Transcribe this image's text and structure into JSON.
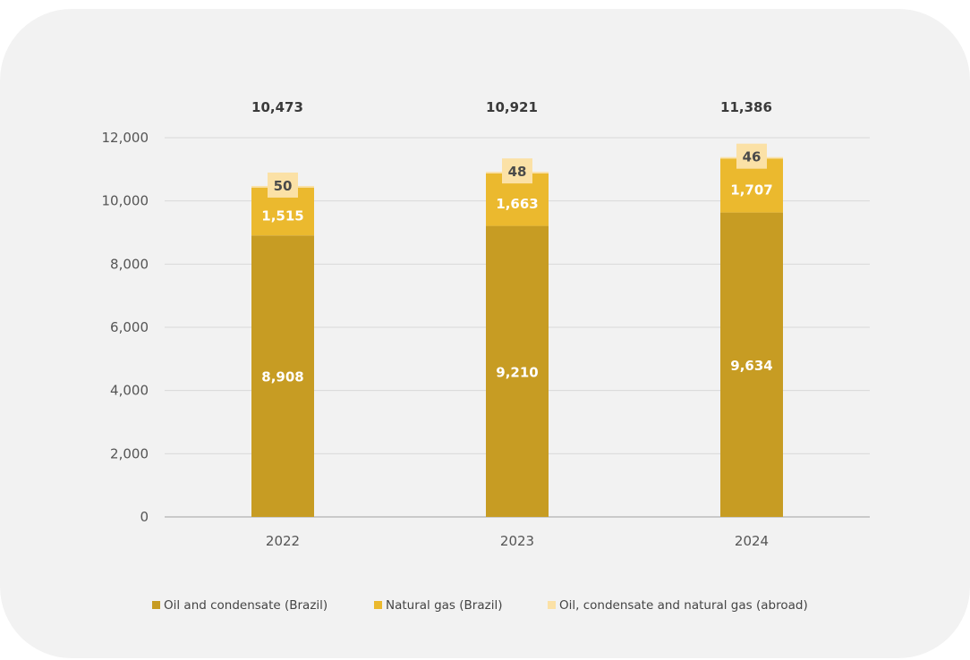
{
  "chart_data": {
    "type": "bar",
    "stacked": true,
    "categories": [
      "2022",
      "2023",
      "2024"
    ],
    "series": [
      {
        "name": "Oil and condensate (Brazil)",
        "values": [
          8908,
          9210,
          9634
        ],
        "color": "#c79c23",
        "label_color": "#ffffff"
      },
      {
        "name": "Natural gas (Brazil)",
        "values": [
          1515,
          1663,
          1707
        ],
        "color": "#ebb92e",
        "label_color": "#ffffff"
      },
      {
        "name": "Oil, condensate and natural gas (abroad)",
        "values": [
          50,
          48,
          46
        ],
        "color": "#fbe1a6",
        "label_color": "#4a4a4a"
      }
    ],
    "value_labels": [
      [
        "8,908",
        "9,210",
        "9,634"
      ],
      [
        "1,515",
        "1,663",
        "1,707"
      ],
      [
        "50",
        "48",
        "46"
      ]
    ],
    "totals": [
      "10,473",
      "10,921",
      "11,386"
    ],
    "total_values": [
      10473,
      10921,
      11386
    ],
    "ylim": [
      0,
      12000
    ],
    "yticks": [
      0,
      2000,
      4000,
      6000,
      8000,
      10000,
      12000
    ],
    "ytick_labels": [
      "0",
      "2,000",
      "4,000",
      "6,000",
      "8,000",
      "10,000",
      "12,000"
    ],
    "grid": true,
    "legend": "bottom",
    "title": "",
    "xlabel": "",
    "ylabel": ""
  }
}
